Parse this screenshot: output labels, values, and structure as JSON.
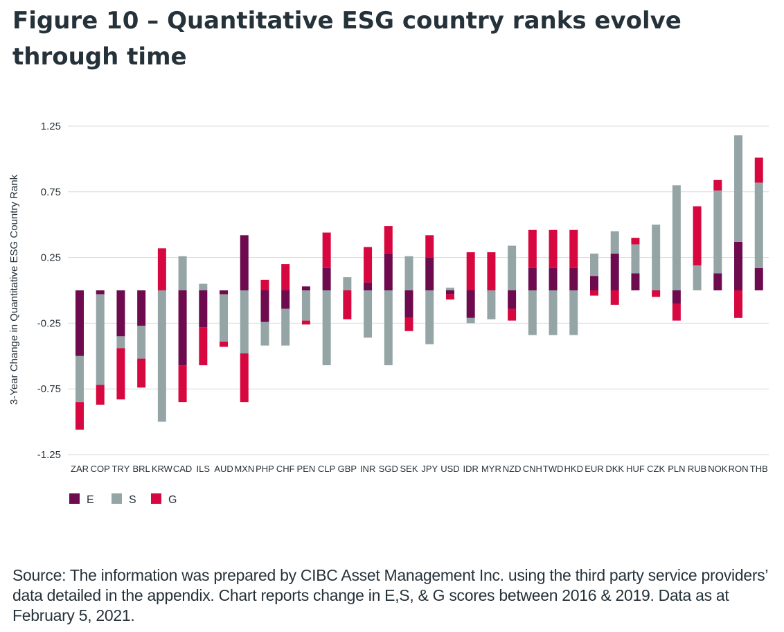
{
  "title": "Figure 10 – Quantitative ESG country ranks evolve through time",
  "source_note": "Source: The information was prepared by CIBC Asset Management Inc. using the third party service providers’ data detailed in the appendix. Chart reports change in E,S, & G scores between 2016 & 2019. Data as at February 5, 2021.",
  "chart_data": {
    "type": "bar",
    "stacked": true,
    "ylabel": "3-Year Change in Quantitative ESG Country Rank",
    "xlabel": "",
    "ylim": [
      -1.25,
      1.25
    ],
    "yticks": [
      1.25,
      0.75,
      0.25,
      -0.25,
      -0.75,
      -1.25
    ],
    "ytick_labels": [
      "1.25",
      "0.75",
      "0.25",
      "-0.25",
      "-0.75",
      "-1.25"
    ],
    "grid": true,
    "legend_position": "bottom-left",
    "categories": [
      "ZAR",
      "COP",
      "TRY",
      "BRL",
      "KRW",
      "CAD",
      "ILS",
      "AUD",
      "MXN",
      "PHP",
      "CHF",
      "PEN",
      "CLP",
      "GBP",
      "INR",
      "SGD",
      "SEK",
      "JPY",
      "USD",
      "IDR",
      "MYR",
      "NZD",
      "CNH",
      "TWD",
      "HKD",
      "EUR",
      "DKK",
      "HUF",
      "CZK",
      "PLN",
      "RUB",
      "NOK",
      "RON",
      "THB"
    ],
    "series": [
      {
        "name": "E",
        "color": "#6e0a4e",
        "values": [
          -0.5,
          -0.03,
          -0.35,
          -0.27,
          0,
          -0.57,
          -0.28,
          -0.03,
          0.42,
          -0.24,
          -0.14,
          0.03,
          0.17,
          0,
          0.06,
          0.28,
          -0.21,
          0.25,
          -0.03,
          -0.21,
          0,
          -0.14,
          0.17,
          0.17,
          0.17,
          0.11,
          0.28,
          0.13,
          0,
          -0.1,
          0,
          0.13,
          0.37,
          0.17
        ]
      },
      {
        "name": "S",
        "color": "#95a5a6",
        "values": [
          -0.35,
          -0.69,
          -0.09,
          -0.25,
          -1.0,
          0.26,
          0.05,
          -0.36,
          -0.48,
          -0.18,
          -0.28,
          -0.23,
          -0.57,
          0.1,
          -0.36,
          -0.57,
          0.26,
          -0.41,
          0.02,
          -0.04,
          -0.22,
          0.34,
          -0.34,
          -0.34,
          -0.34,
          0.17,
          0.17,
          0.22,
          0.5,
          0.8,
          0.19,
          0.63,
          0.81,
          0.65
        ]
      },
      {
        "name": "G",
        "color": "#d7083f",
        "values": [
          -0.21,
          -0.15,
          -0.39,
          -0.22,
          0.32,
          -0.28,
          -0.29,
          -0.04,
          -0.37,
          0.08,
          0.2,
          -0.03,
          0.27,
          -0.22,
          0.27,
          0.21,
          -0.1,
          0.17,
          -0.04,
          0.29,
          0.29,
          -0.09,
          0.29,
          0.29,
          0.29,
          -0.04,
          -0.11,
          0.05,
          -0.05,
          -0.13,
          0.45,
          0.08,
          -0.21,
          0.19
        ]
      }
    ]
  }
}
